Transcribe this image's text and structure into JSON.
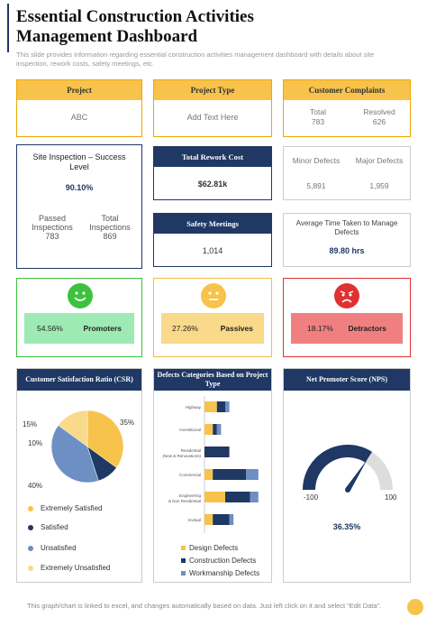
{
  "header": {
    "title_line1": "Essential Construction Activities",
    "title_line2": "Management Dashboard",
    "subtitle": "This slide provides information regarding essential construction activities management dashboard with details about site inspection, rework costs, safety meetings, etc."
  },
  "top_row": {
    "project": {
      "label": "Project",
      "value": "ABC"
    },
    "project_type": {
      "label": "Project Type",
      "value": "Add Text Here"
    },
    "complaints": {
      "label": "Customer Complaints",
      "total_label": "Total",
      "total_value": "783",
      "resolved_label": "Resolved",
      "resolved_value": "626"
    }
  },
  "site_inspection": {
    "title": "Site Inspection – Success Level",
    "value": "90.10%",
    "passed_label": "Passed Inspections",
    "passed_value": "783",
    "total_label": "Total Inspections",
    "total_value": "869"
  },
  "rework": {
    "label": "Total Rework Cost",
    "value": "$62.81k"
  },
  "defects": {
    "minor_label": "Minor Defects",
    "minor_value": "5,891",
    "major_label": "Major Defects",
    "major_value": "1,959"
  },
  "safety": {
    "label": "Safety Meetings",
    "value": "1,014"
  },
  "avg_time": {
    "label": "Average Time Taken to Manage Defects",
    "value": "89.80 hrs"
  },
  "moods": {
    "promoters": {
      "pct": "54.56%",
      "label": "Promoters"
    },
    "passives": {
      "pct": "27.26%",
      "label": "Passives"
    },
    "detractors": {
      "pct": "18.17%",
      "label": "Detractors"
    }
  },
  "csr": {
    "title": "Customer Satisfaction Ratio (CSR)",
    "legend": [
      "Extremely Satisfied",
      "Satisfied",
      "Unsatisfied",
      "Extremely Unsatisfied"
    ]
  },
  "defect_cat": {
    "title": "Defects Categories Based on Project Type",
    "legend": [
      "Design Defects",
      "Construction Defects",
      "Workmanship Defects"
    ]
  },
  "nps": {
    "title": "Net Promoter Score (NPS)",
    "min": "-100",
    "max": "100",
    "value": "36.35%"
  },
  "colors": {
    "navy": "#1f3864",
    "gold": "#f7c34b",
    "ltblue": "#6d8fc4",
    "paleyellow": "#f9d98a",
    "green": "#3cc23c",
    "red": "#e03030"
  },
  "chart_data": [
    {
      "type": "pie",
      "title": "Customer Satisfaction Ratio (CSR)",
      "categories": [
        "Extremely Satisfied",
        "Satisfied",
        "Unsatisfied",
        "Extremely Unsatisfied"
      ],
      "values": [
        35,
        10,
        40,
        15
      ],
      "labels": [
        "35%",
        "10%",
        "40%",
        "15%"
      ]
    },
    {
      "type": "bar",
      "orientation": "horizontal",
      "stacked": true,
      "title": "Defects Categories Based on Project Type",
      "categories": [
        "Highway",
        "Investitional",
        "Residential (New & Renovations)",
        "Commercial",
        "Engineering & Non Residential",
        "Invitual"
      ],
      "series": [
        {
          "name": "Design Defects",
          "values": [
            3,
            2,
            0,
            2,
            5,
            2
          ]
        },
        {
          "name": "Construction Defects",
          "values": [
            2,
            1,
            6,
            8,
            6,
            4
          ]
        },
        {
          "name": "Workmanship Defects",
          "values": [
            1,
            1,
            0,
            3,
            2,
            1
          ]
        }
      ]
    },
    {
      "type": "gauge",
      "title": "Net Promoter Score (NPS)",
      "min": -100,
      "max": 100,
      "value": 36.35
    }
  ]
}
